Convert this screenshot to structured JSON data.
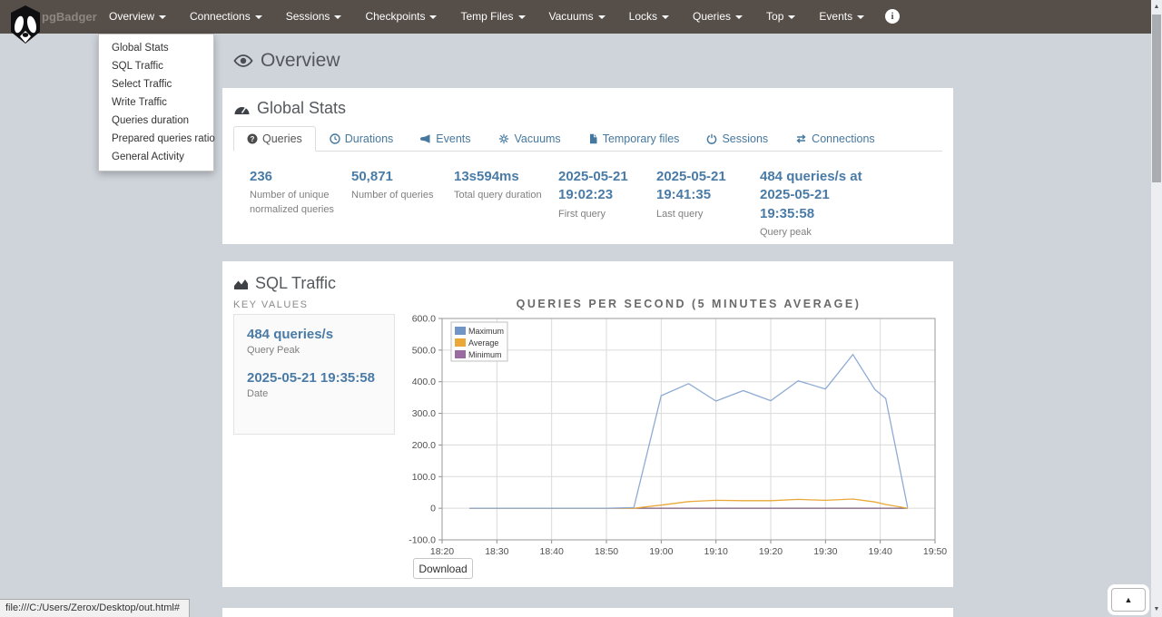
{
  "navbar": {
    "brand": "pgBadger",
    "items": [
      {
        "label": "Overview"
      },
      {
        "label": "Connections"
      },
      {
        "label": "Sessions"
      },
      {
        "label": "Checkpoints"
      },
      {
        "label": "Temp Files"
      },
      {
        "label": "Vacuums"
      },
      {
        "label": "Locks"
      },
      {
        "label": "Queries"
      },
      {
        "label": "Top"
      },
      {
        "label": "Events"
      }
    ],
    "info_icon": "info-circle-icon",
    "logo_icon": "badger-logo-icon"
  },
  "dropdown": {
    "items": [
      "Global Stats",
      "SQL Traffic",
      "Select Traffic",
      "Write Traffic",
      "Queries duration",
      "Prepared queries ratio",
      "General Activity"
    ]
  },
  "page": {
    "title": "Overview",
    "title_icon": "eye-icon"
  },
  "global_stats": {
    "title": "Global Stats",
    "title_icon": "tachometer-icon",
    "tabs": [
      {
        "label": "Queries",
        "icon": "question-circle-icon",
        "active": true
      },
      {
        "label": "Durations",
        "icon": "clock-icon",
        "active": false
      },
      {
        "label": "Events",
        "icon": "bullhorn-icon",
        "active": false
      },
      {
        "label": "Vacuums",
        "icon": "cogs-icon",
        "active": false
      },
      {
        "label": "Temporary files",
        "icon": "file-icon",
        "active": false
      },
      {
        "label": "Sessions",
        "icon": "power-icon",
        "active": false
      },
      {
        "label": "Connections",
        "icon": "exchange-icon",
        "active": false
      }
    ],
    "stats": [
      {
        "value": "236",
        "label": "Number of unique normalized queries"
      },
      {
        "value": "50,871",
        "label": "Number of queries"
      },
      {
        "value": "13s594ms",
        "label": "Total query duration"
      },
      {
        "value": "2025-05-21 19:02:23",
        "label": "First query"
      },
      {
        "value": "2025-05-21 19:41:35",
        "label": "Last query"
      },
      {
        "value": "484 queries/s at 2025-05-21 19:35:58",
        "label": "Query peak"
      }
    ]
  },
  "sql_traffic": {
    "title": "SQL Traffic",
    "title_icon": "area-chart-icon",
    "key_values_label": "KEY VALUES",
    "key_values": [
      {
        "value": "484 queries/s",
        "label": "Query Peak"
      },
      {
        "value": "2025-05-21 19:35:58",
        "label": "Date"
      }
    ],
    "download_label": "Download"
  },
  "chart_data": {
    "type": "line",
    "title": "QUERIES PER SECOND (5 MINUTES AVERAGE)",
    "xlabel": "",
    "ylabel": "",
    "x_range": [
      "18:20",
      "19:50"
    ],
    "ylim": [
      -100,
      600
    ],
    "x_ticks": [
      "18:20",
      "18:30",
      "18:40",
      "18:50",
      "19:00",
      "19:10",
      "19:20",
      "19:30",
      "19:40",
      "19:50"
    ],
    "y_ticks": [
      "600.0",
      "500.0",
      "400.0",
      "300.0",
      "200.0",
      "100.0",
      "0",
      "-100.0"
    ],
    "grid": true,
    "legend_position": "top-left",
    "series": [
      {
        "name": "Maximum",
        "swatch": "#7195c5",
        "color": "#8fabd2",
        "points": [
          [
            "18:25",
            0
          ],
          [
            "18:30",
            0
          ],
          [
            "18:35",
            0
          ],
          [
            "18:40",
            0
          ],
          [
            "18:45",
            0
          ],
          [
            "18:50",
            0
          ],
          [
            "18:55",
            2
          ],
          [
            "19:00",
            356
          ],
          [
            "19:05",
            394
          ],
          [
            "19:10",
            339
          ],
          [
            "19:15",
            372
          ],
          [
            "19:20",
            340
          ],
          [
            "19:25",
            403
          ],
          [
            "19:30",
            377
          ],
          [
            "19:35",
            486
          ],
          [
            "19:39",
            376
          ],
          [
            "19:41",
            347
          ],
          [
            "19:45",
            2
          ]
        ]
      },
      {
        "name": "Average",
        "swatch": "#eaa838",
        "color": "#e4b express56d",
        "points": [
          [
            "18:25",
            0
          ],
          [
            "18:55",
            0
          ],
          [
            "19:00",
            10
          ],
          [
            "19:05",
            21
          ],
          [
            "19:10",
            25
          ],
          [
            "19:15",
            24
          ],
          [
            "19:20",
            24
          ],
          [
            "19:25",
            28
          ],
          [
            "19:30",
            25
          ],
          [
            "19:35",
            29
          ],
          [
            "19:39",
            20
          ],
          [
            "19:41",
            12
          ],
          [
            "19:45",
            0
          ]
        ]
      },
      {
        "name": "Minimum",
        "swatch": "#9a6ba1",
        "color": "#7c5f7d",
        "points": [
          [
            "18:25",
            0
          ],
          [
            "19:45",
            0
          ]
        ]
      }
    ]
  },
  "statusbar": {
    "url": "file:///C:/Users/Zerox/Desktop/out.html#"
  },
  "colors": {
    "navbar_bg": "#564e49",
    "body_bg": "#cfd4db",
    "accent_link": "#46789f",
    "stat_value": "#4a7ba6"
  }
}
